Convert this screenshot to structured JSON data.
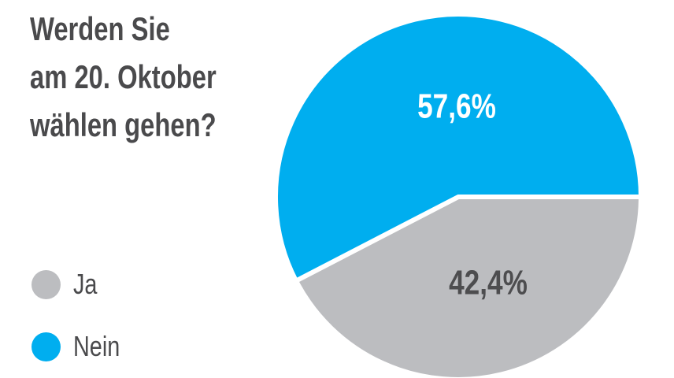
{
  "chart_data": {
    "type": "pie",
    "title_lines": [
      "Werden Sie",
      "am 20. Oktober",
      "wählen gehen?"
    ],
    "categories": [
      "Ja",
      "Nein"
    ],
    "values": [
      42.4,
      57.6
    ],
    "data_labels": [
      "42,4%",
      "57,6%"
    ],
    "colors": [
      "#bcbdc0",
      "#00aeef"
    ],
    "label_colors": [
      "#4d4d4f",
      "#ffffff"
    ],
    "legend": {
      "placement": "bottom-left",
      "entries": [
        "Ja",
        "Nein"
      ]
    }
  }
}
